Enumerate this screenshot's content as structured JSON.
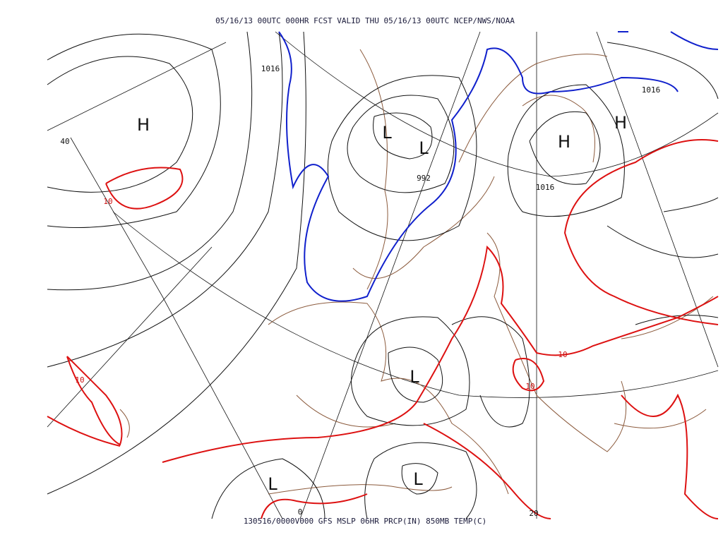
{
  "header": "05/16/13 00UTC  000HR  FCST VALID THU 05/16/13 00UTC  NCEP/NWS/NOAA",
  "footer": "130516/0000V000 GFS MSLP 06HR PRCP(IN) 850MB TEMP(C)",
  "pressure_centers": [
    "H",
    "L",
    "L",
    "H",
    "H",
    "L",
    "L",
    "L"
  ],
  "isobar_labels": [
    "1016",
    "992",
    "1016",
    "1016"
  ],
  "isotherm_labels": [
    "10",
    "10",
    "10",
    "10"
  ],
  "grid_labels": [
    "40",
    "0",
    "20"
  ]
}
